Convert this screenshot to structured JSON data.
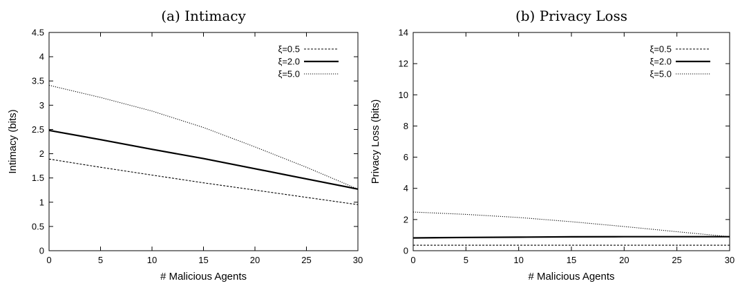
{
  "chart_data": [
    {
      "type": "line",
      "title": "(a) Intimacy",
      "xlabel": "# Malicious Agents",
      "ylabel": "Intimacy (bits)",
      "xlim": [
        0,
        30
      ],
      "ylim": [
        0,
        4.5
      ],
      "x_ticks": [
        "0",
        "5",
        "10",
        "15",
        "20",
        "25",
        "30"
      ],
      "y_ticks": [
        "0",
        "0.5",
        "1",
        "1.5",
        "2",
        "2.5",
        "3",
        "3.5",
        "4",
        "4.5"
      ],
      "grid": false,
      "legend_position": "top-right",
      "x": [
        0,
        5,
        10,
        15,
        20,
        25,
        30
      ],
      "series": [
        {
          "name": "ξ=0.5",
          "style": "dashed",
          "values": [
            1.89,
            1.72,
            1.56,
            1.4,
            1.25,
            1.1,
            0.95
          ]
        },
        {
          "name": "ξ=2.0",
          "style": "solid",
          "values": [
            2.48,
            2.29,
            2.09,
            1.9,
            1.69,
            1.48,
            1.27
          ]
        },
        {
          "name": "ξ=5.0",
          "style": "dotted",
          "values": [
            3.41,
            3.16,
            2.88,
            2.54,
            2.14,
            1.72,
            1.27
          ]
        }
      ]
    },
    {
      "type": "line",
      "title": "(b) Privacy Loss",
      "xlabel": "# Malicious Agents",
      "ylabel": "Privacy Loss (bits)",
      "xlim": [
        0,
        30
      ],
      "ylim": [
        0,
        14
      ],
      "x_ticks": [
        "0",
        "5",
        "10",
        "15",
        "20",
        "25",
        "30"
      ],
      "y_ticks": [
        "0",
        "2",
        "4",
        "6",
        "8",
        "10",
        "12",
        "14"
      ],
      "grid": false,
      "legend_position": "top-right",
      "x": [
        0,
        5,
        10,
        15,
        20,
        25,
        30
      ],
      "series": [
        {
          "name": "ξ=0.5",
          "style": "dashed",
          "values": [
            0.35,
            0.35,
            0.35,
            0.35,
            0.35,
            0.35,
            0.35
          ]
        },
        {
          "name": "ξ=2.0",
          "style": "solid",
          "values": [
            0.82,
            0.85,
            0.87,
            0.89,
            0.9,
            0.9,
            0.9
          ]
        },
        {
          "name": "ξ=5.0",
          "style": "dotted",
          "values": [
            2.48,
            2.33,
            2.13,
            1.86,
            1.55,
            1.22,
            0.9
          ]
        }
      ]
    }
  ]
}
